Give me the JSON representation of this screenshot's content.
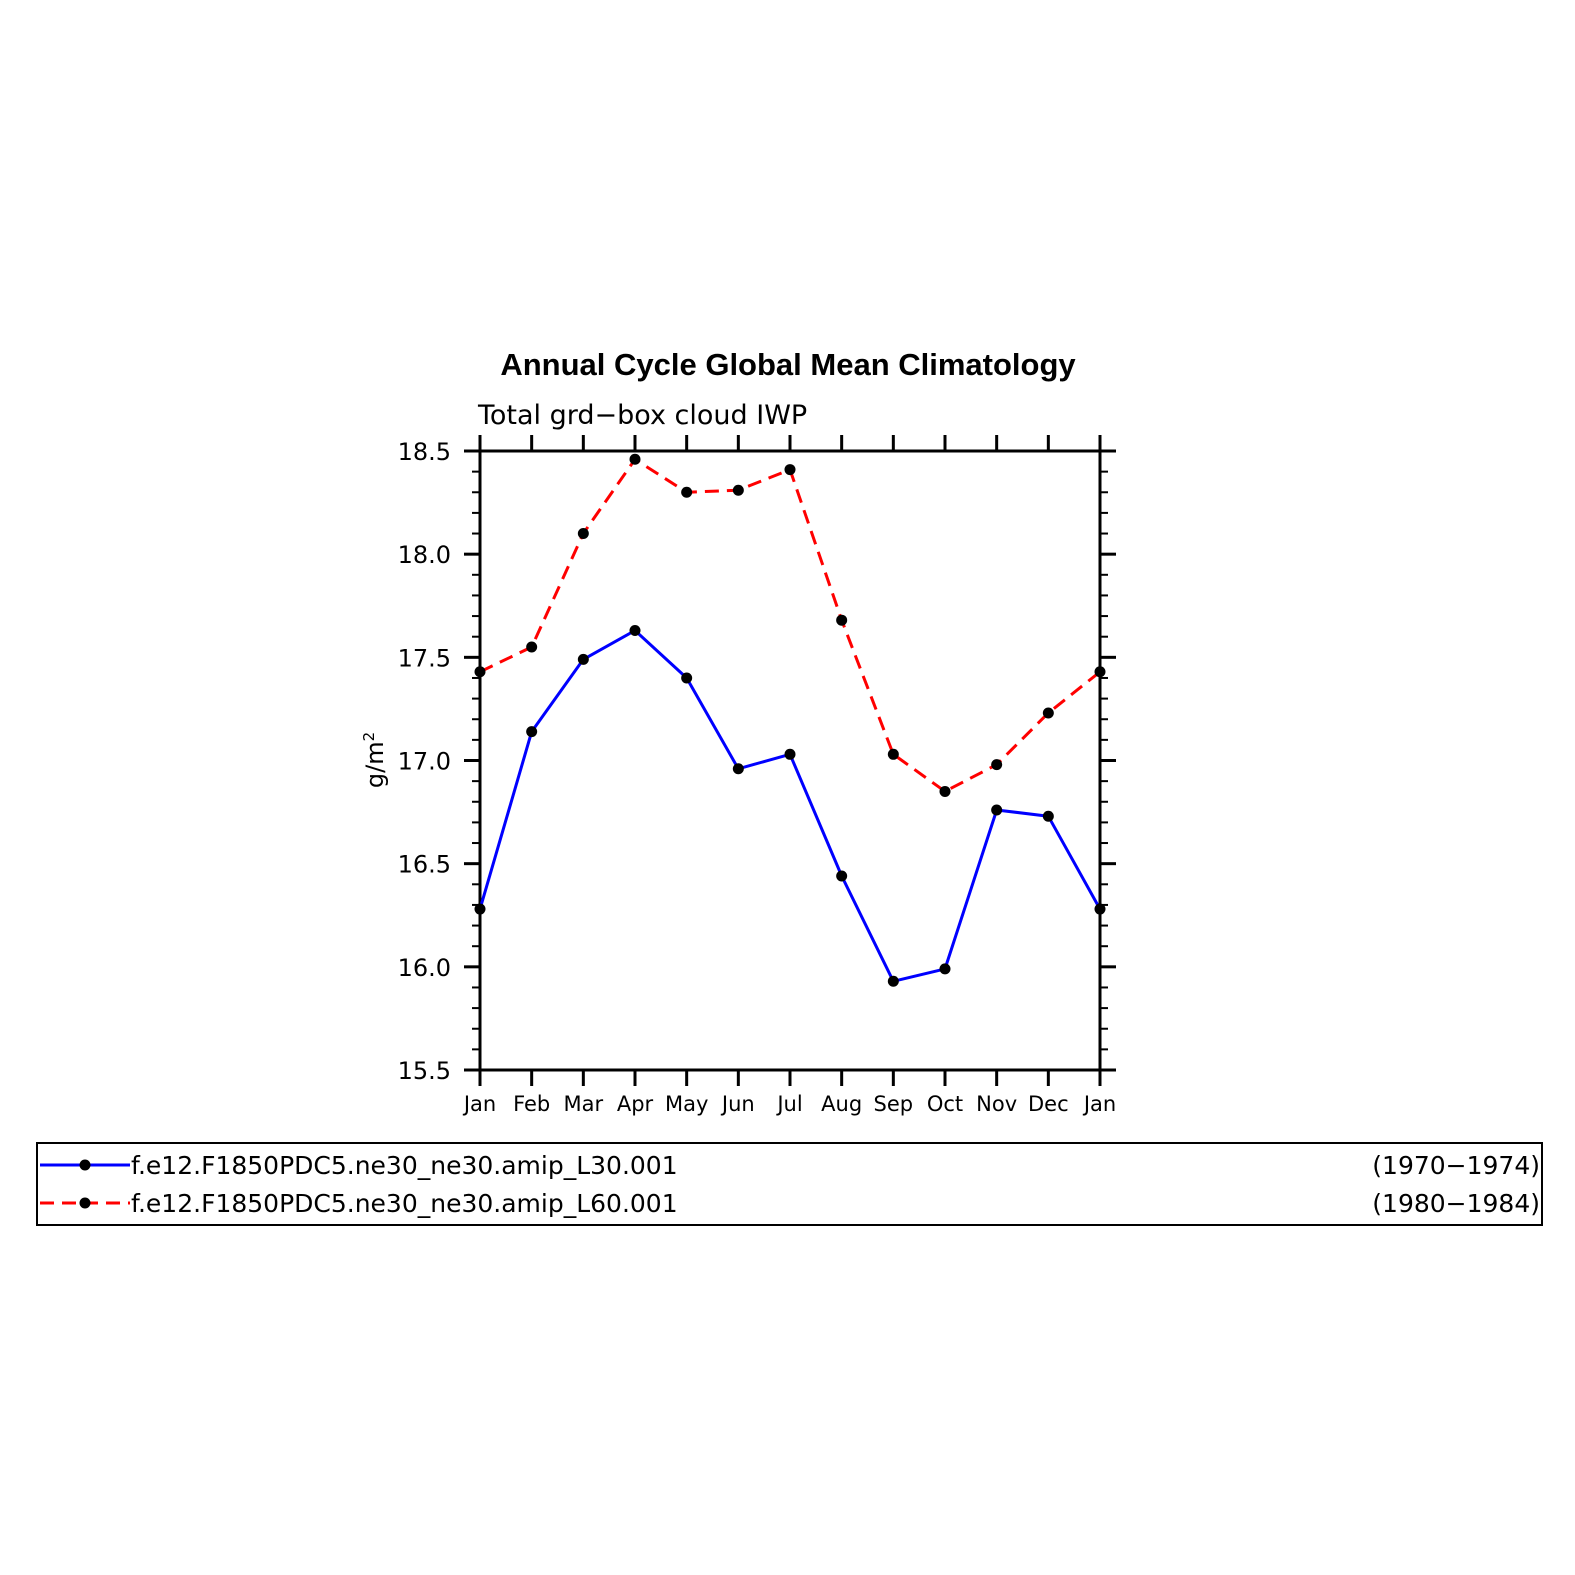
{
  "chart_data": {
    "type": "line",
    "title": "Annual Cycle Global Mean Climatology",
    "subtitle": "Total grd−box cloud IWP",
    "ylabel_base": "g/m",
    "ylabel_sup": "2",
    "xlabel": "",
    "categories": [
      "Jan",
      "Feb",
      "Mar",
      "Apr",
      "May",
      "Jun",
      "Jul",
      "Aug",
      "Sep",
      "Oct",
      "Nov",
      "Dec",
      "Jan"
    ],
    "ylim": [
      15.5,
      18.5
    ],
    "yticks": [
      "15.5",
      "16.0",
      "16.5",
      "17.0",
      "17.5",
      "18.0",
      "18.5"
    ],
    "grid": false,
    "legend_position": "bottom",
    "series": [
      {
        "name": "f.e12.F1850PDC5.ne30_ne30.amip_L30.001",
        "period": "(1970−1974)",
        "color": "#0000ff",
        "dash": "solid",
        "values": [
          16.28,
          17.14,
          17.49,
          17.63,
          17.4,
          16.96,
          17.03,
          16.44,
          15.93,
          15.99,
          16.76,
          16.73,
          16.28
        ]
      },
      {
        "name": "f.e12.F1850PDC5.ne30_ne30.amip_L60.001",
        "period": "(1980−1984)",
        "color": "#ff0000",
        "dash": "dashed",
        "values": [
          17.43,
          17.55,
          18.1,
          18.46,
          18.3,
          18.31,
          18.41,
          17.68,
          17.03,
          16.85,
          16.98,
          17.23,
          17.43
        ]
      }
    ]
  }
}
